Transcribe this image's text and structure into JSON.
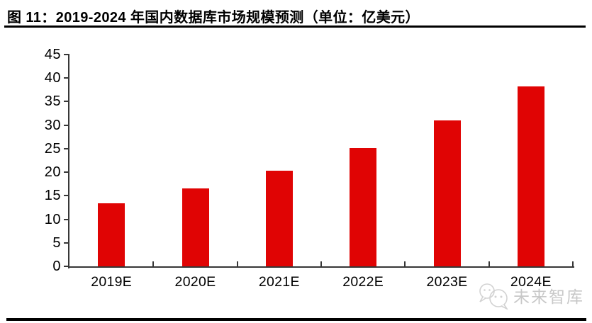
{
  "figure": {
    "title": "图 11：2019-2024 年国内数据库市场规模预测（单位：亿美元）"
  },
  "watermark": {
    "text": "未来智库",
    "logo": "chat-bubbles-logo"
  },
  "colors": {
    "bar": "#e00404",
    "axis": "#373737",
    "text": "#000000",
    "rule": "#000000",
    "watermark_gray": "#c8c8c8",
    "background": "#ffffff"
  },
  "chart_data": {
    "type": "bar",
    "title": "图 11：2019-2024 年国内数据库市场规模预测（单位：亿美元）",
    "unit_label": "亿美元",
    "categories": [
      "2019E",
      "2020E",
      "2021E",
      "2022E",
      "2023E",
      "2024E"
    ],
    "values": [
      13.4,
      16.5,
      20.3,
      25.1,
      31.0,
      38.3
    ],
    "ylim": [
      0,
      45
    ],
    "yticks": [
      0,
      5,
      10,
      15,
      20,
      25,
      30,
      35,
      40,
      45
    ],
    "xlabel": "",
    "ylabel": "",
    "grid": false,
    "legend": "none"
  }
}
